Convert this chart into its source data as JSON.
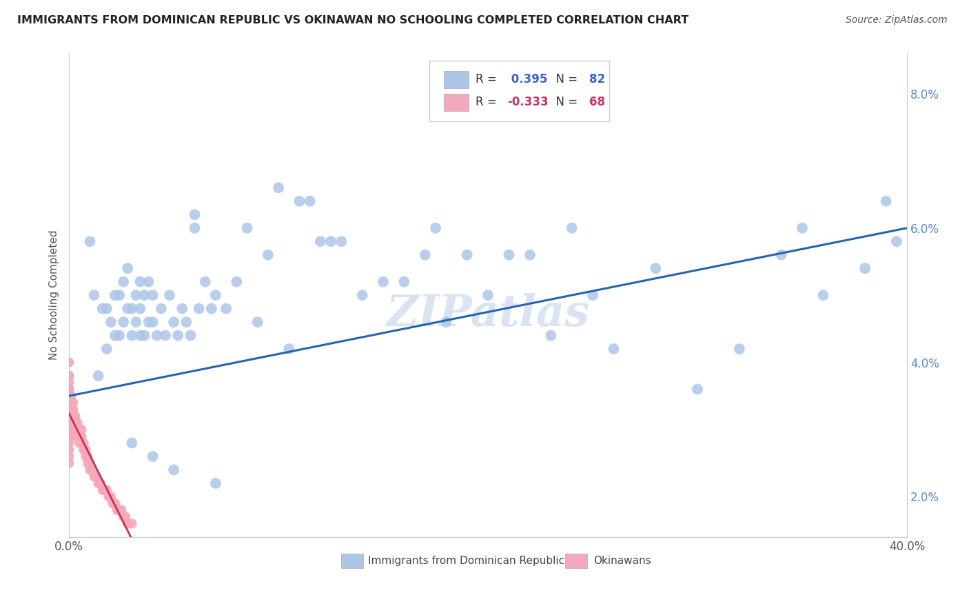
{
  "title": "IMMIGRANTS FROM DOMINICAN REPUBLIC VS OKINAWAN NO SCHOOLING COMPLETED CORRELATION CHART",
  "source": "Source: ZipAtlas.com",
  "ylabel": "No Schooling Completed",
  "xlim": [
    0.0,
    0.4
  ],
  "ylim": [
    0.014,
    0.086
  ],
  "yticks_right": [
    0.02,
    0.04,
    0.06,
    0.08
  ],
  "ytick_labels_right": [
    "2.0%",
    "4.0%",
    "6.0%",
    "8.0%"
  ],
  "blue_R": 0.395,
  "blue_N": 82,
  "pink_R": -0.333,
  "pink_N": 68,
  "blue_color": "#adc6e8",
  "blue_line_color": "#2563ae",
  "pink_color": "#f4a8bb",
  "pink_line_color": "#c8334e",
  "blue_scatter_x": [
    0.01,
    0.012,
    0.014,
    0.016,
    0.018,
    0.018,
    0.02,
    0.022,
    0.022,
    0.024,
    0.024,
    0.026,
    0.026,
    0.028,
    0.028,
    0.03,
    0.03,
    0.032,
    0.032,
    0.034,
    0.034,
    0.034,
    0.036,
    0.036,
    0.038,
    0.038,
    0.04,
    0.04,
    0.042,
    0.044,
    0.046,
    0.048,
    0.05,
    0.052,
    0.054,
    0.056,
    0.058,
    0.06,
    0.06,
    0.062,
    0.065,
    0.068,
    0.07,
    0.075,
    0.08,
    0.085,
    0.09,
    0.095,
    0.1,
    0.105,
    0.11,
    0.115,
    0.12,
    0.125,
    0.13,
    0.14,
    0.15,
    0.16,
    0.17,
    0.175,
    0.18,
    0.19,
    0.2,
    0.21,
    0.22,
    0.23,
    0.24,
    0.25,
    0.26,
    0.28,
    0.3,
    0.32,
    0.34,
    0.35,
    0.36,
    0.38,
    0.39,
    0.395,
    0.03,
    0.04,
    0.05,
    0.07
  ],
  "blue_scatter_y": [
    0.058,
    0.05,
    0.038,
    0.048,
    0.042,
    0.048,
    0.046,
    0.044,
    0.05,
    0.044,
    0.05,
    0.046,
    0.052,
    0.048,
    0.054,
    0.044,
    0.048,
    0.046,
    0.05,
    0.044,
    0.048,
    0.052,
    0.044,
    0.05,
    0.046,
    0.052,
    0.046,
    0.05,
    0.044,
    0.048,
    0.044,
    0.05,
    0.046,
    0.044,
    0.048,
    0.046,
    0.044,
    0.06,
    0.062,
    0.048,
    0.052,
    0.048,
    0.05,
    0.048,
    0.052,
    0.06,
    0.046,
    0.056,
    0.066,
    0.042,
    0.064,
    0.064,
    0.058,
    0.058,
    0.058,
    0.05,
    0.052,
    0.052,
    0.056,
    0.06,
    0.046,
    0.056,
    0.05,
    0.056,
    0.056,
    0.044,
    0.06,
    0.05,
    0.042,
    0.054,
    0.036,
    0.042,
    0.056,
    0.06,
    0.05,
    0.054,
    0.064,
    0.058,
    0.028,
    0.026,
    0.024,
    0.022
  ],
  "pink_scatter_x": [
    0.0,
    0.0,
    0.0,
    0.0,
    0.0,
    0.0,
    0.0,
    0.0,
    0.0,
    0.0,
    0.0,
    0.0,
    0.0,
    0.0,
    0.0,
    0.0,
    0.0,
    0.001,
    0.001,
    0.001,
    0.001,
    0.001,
    0.001,
    0.001,
    0.002,
    0.002,
    0.002,
    0.002,
    0.002,
    0.003,
    0.003,
    0.003,
    0.003,
    0.004,
    0.004,
    0.004,
    0.005,
    0.005,
    0.005,
    0.006,
    0.006,
    0.007,
    0.007,
    0.008,
    0.008,
    0.009,
    0.009,
    0.01,
    0.01,
    0.011,
    0.012,
    0.013,
    0.014,
    0.015,
    0.016,
    0.017,
    0.018,
    0.019,
    0.02,
    0.021,
    0.022,
    0.023,
    0.024,
    0.025,
    0.026,
    0.027,
    0.028,
    0.03
  ],
  "pink_scatter_y": [
    0.04,
    0.038,
    0.037,
    0.036,
    0.035,
    0.034,
    0.033,
    0.032,
    0.031,
    0.03,
    0.029,
    0.028,
    0.027,
    0.026,
    0.025,
    0.038,
    0.036,
    0.035,
    0.034,
    0.033,
    0.032,
    0.031,
    0.03,
    0.029,
    0.034,
    0.033,
    0.032,
    0.031,
    0.03,
    0.032,
    0.031,
    0.03,
    0.029,
    0.031,
    0.03,
    0.029,
    0.03,
    0.029,
    0.028,
    0.03,
    0.029,
    0.028,
    0.027,
    0.027,
    0.026,
    0.026,
    0.025,
    0.025,
    0.024,
    0.024,
    0.023,
    0.023,
    0.022,
    0.022,
    0.021,
    0.021,
    0.021,
    0.02,
    0.02,
    0.019,
    0.019,
    0.018,
    0.018,
    0.018,
    0.017,
    0.017,
    0.016,
    0.016
  ],
  "watermark": "ZIPatlas",
  "background_color": "#ffffff",
  "grid_color": "#cccccc"
}
